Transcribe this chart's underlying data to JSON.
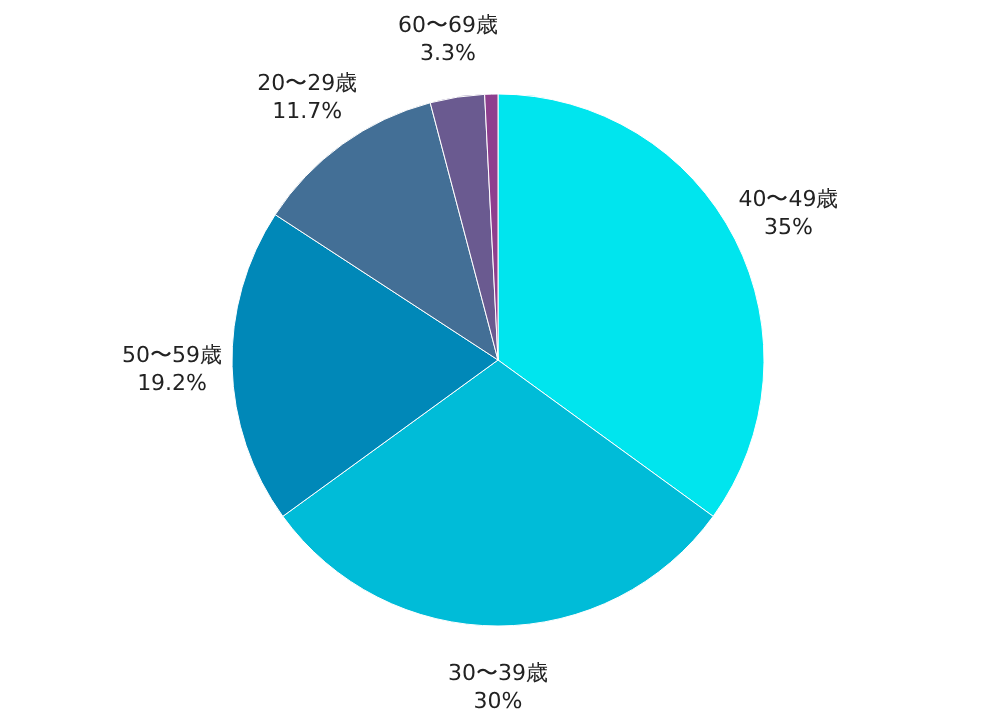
{
  "chart_data": {
    "type": "pie",
    "categories": [
      "40〜49歳",
      "30〜39歳",
      "50〜59歳",
      "20〜29歳",
      "60〜69歳",
      null
    ],
    "values": [
      35,
      30,
      19.2,
      11.7,
      3.3,
      0.8
    ],
    "value_labels": [
      "35%",
      "30%",
      "19.2%",
      "11.7%",
      "3.3%",
      null
    ],
    "colors": [
      "#00e5ee",
      "#00bcd8",
      "#0088b8",
      "#436f96",
      "#6a5a90",
      "#8e3f8e"
    ]
  }
}
